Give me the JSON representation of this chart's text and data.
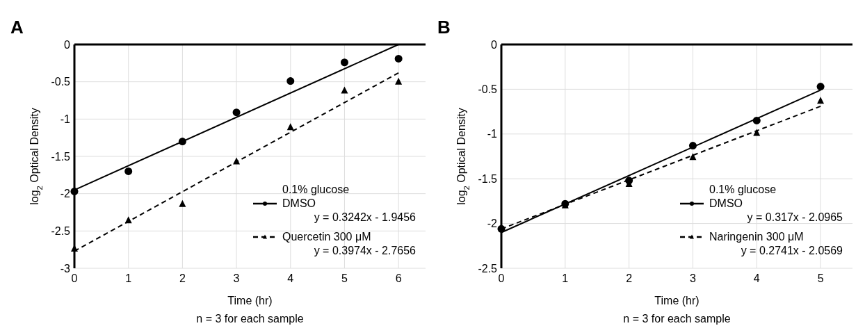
{
  "chart_data": [
    {
      "type": "scatter",
      "title": "A",
      "xlabel": "Time (hr)",
      "ylabel": "log$_{2}$ Optical Density",
      "legend_title": "0.1% glucose",
      "legend": "bottom right",
      "grid": true,
      "xlim": [
        0,
        6.5
      ],
      "xticks": [
        0,
        1,
        2,
        3,
        4,
        5,
        6
      ],
      "ylim": [
        -3,
        0
      ],
      "yticks": [
        0,
        -0.5,
        -1,
        -1.5,
        -2,
        -2.5,
        -3
      ],
      "annotations": [
        "y = 0.3242x - 1.9456",
        "y = 0.3974x - 2.7656",
        "n = 3 for each sample"
      ],
      "series": [
        {
          "name": "DMSO",
          "marker": "circle",
          "color": "#000000",
          "x": [
            0,
            1,
            2,
            3,
            4,
            5,
            6
          ],
          "values": [
            -1.97,
            -1.7,
            -1.3,
            -0.91,
            -0.49,
            -0.24,
            -0.19
          ]
        },
        {
          "type": "line",
          "line_style": "solid",
          "color": "#000000",
          "x": [
            0,
            6
          ],
          "values": [
            -1.95,
            0.0
          ]
        },
        {
          "name": "Quercetin 300 μM",
          "marker": "triangle",
          "color": "#000000",
          "x": [
            0,
            1,
            2,
            3,
            4,
            5,
            6
          ],
          "values": [
            -2.74,
            -2.36,
            -2.14,
            -1.57,
            -1.11,
            -0.62,
            -0.5
          ]
        },
        {
          "type": "line",
          "line_style": "dashed",
          "color": "#000000",
          "x": [
            0,
            6
          ],
          "values": [
            -2.77,
            -0.38
          ]
        }
      ]
    },
    {
      "type": "scatter",
      "title": "B",
      "xlabel": "Time (hr)",
      "ylabel": "log$_{2}$ Optical Density",
      "legend_title": "0.1% glucose",
      "legend": "bottom right",
      "grid": true,
      "xlim": [
        0,
        5.5
      ],
      "xticks": [
        0,
        1,
        2,
        3,
        4,
        5
      ],
      "ylim": [
        -2.5,
        0
      ],
      "yticks": [
        0,
        -0.5,
        -1,
        -1.5,
        -2,
        -2.5
      ],
      "annotations": [
        "y = 0.317x - 2.0965",
        "y = 0.2741x - 2.0569",
        "n = 3 for each sample"
      ],
      "series": [
        {
          "name": "DMSO",
          "marker": "circle",
          "color": "#000000",
          "x": [
            0,
            1,
            2,
            3,
            4,
            5
          ],
          "values": [
            -2.06,
            -1.78,
            -1.52,
            -1.13,
            -0.85,
            -0.47
          ]
        },
        {
          "type": "line",
          "line_style": "solid",
          "color": "#000000",
          "x": [
            0,
            5
          ],
          "values": [
            -2.1,
            -0.51
          ]
        },
        {
          "name": "Naringenin 300 μM",
          "marker": "triangle",
          "color": "#000000",
          "x": [
            1,
            2,
            3,
            4,
            5
          ],
          "values": [
            -1.8,
            -1.56,
            -1.26,
            -0.99,
            -0.63
          ]
        },
        {
          "type": "line",
          "line_style": "dashed",
          "color": "#000000",
          "x": [
            0,
            5
          ],
          "values": [
            -2.06,
            -0.69
          ]
        }
      ]
    }
  ]
}
